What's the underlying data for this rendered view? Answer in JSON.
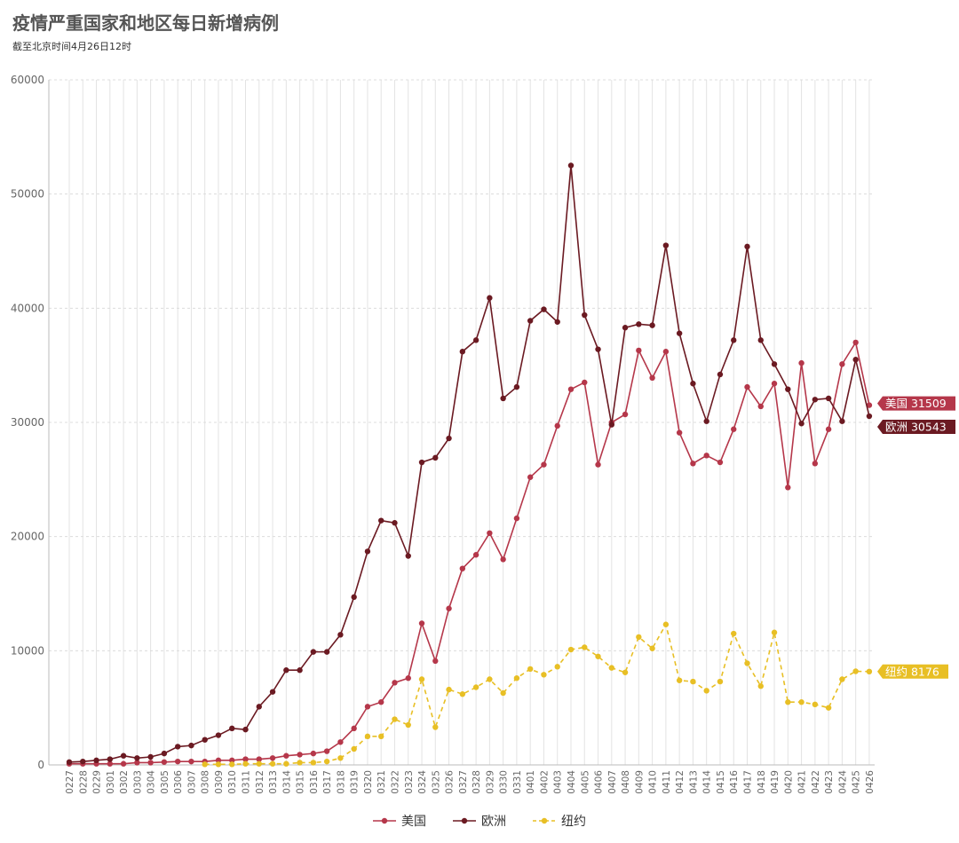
{
  "header": {
    "title": "疫情严重国家和地区每日新增病例",
    "subtitle": "截至北京时间4月26日12时"
  },
  "chart_data": {
    "type": "line",
    "title": "疫情严重国家和地区每日新增病例",
    "subtitle": "截至北京时间4月26日12时",
    "xlabel": "",
    "ylabel": "",
    "ylim": [
      0,
      60000
    ],
    "yticks": [
      0,
      10000,
      20000,
      30000,
      40000,
      50000,
      60000
    ],
    "grid": true,
    "legend_position": "bottom",
    "categories": [
      "0227",
      "0228",
      "0229",
      "0301",
      "0302",
      "0303",
      "0304",
      "0305",
      "0306",
      "0307",
      "0308",
      "0309",
      "0310",
      "0311",
      "0312",
      "0313",
      "0314",
      "0315",
      "0316",
      "0317",
      "0318",
      "0319",
      "0320",
      "0321",
      "0322",
      "0323",
      "0324",
      "0325",
      "0326",
      "0327",
      "0328",
      "0329",
      "0330",
      "0331",
      "0401",
      "0402",
      "0403",
      "0404",
      "0405",
      "0406",
      "0407",
      "0408",
      "0409",
      "0410",
      "0411",
      "0412",
      "0413",
      "0414",
      "0415",
      "0416",
      "0417",
      "0418",
      "0419",
      "0420",
      "0421",
      "0422",
      "0423",
      "0424",
      "0425",
      "0426"
    ],
    "series": [
      {
        "name": "美国",
        "color": "#b5374a",
        "dashed": false,
        "end_label": "美国 31509",
        "values": [
          100,
          100,
          100,
          100,
          100,
          200,
          200,
          250,
          300,
          300,
          300,
          400,
          400,
          500,
          500,
          600,
          800,
          900,
          1000,
          1200,
          2000,
          3200,
          5100,
          5500,
          7200,
          7600,
          12400,
          9100,
          13700,
          17200,
          18400,
          20300,
          18000,
          21600,
          25200,
          26300,
          29700,
          32900,
          33500,
          26300,
          30000,
          30700,
          36300,
          33900,
          36200,
          29100,
          26400,
          27100,
          26500,
          29400,
          33100,
          31400,
          33400,
          24300,
          35200,
          26400,
          29400,
          35100,
          37000,
          31509
        ]
      },
      {
        "name": "欧洲",
        "color": "#6b1a22",
        "dashed": false,
        "end_label": "欧洲 30543",
        "values": [
          250,
          300,
          400,
          500,
          800,
          600,
          700,
          1000,
          1600,
          1700,
          2200,
          2600,
          3200,
          3100,
          5100,
          6400,
          8300,
          8300,
          9900,
          9900,
          11400,
          14700,
          18700,
          21400,
          21200,
          18300,
          26500,
          26900,
          28600,
          36200,
          37200,
          40900,
          32100,
          33100,
          38900,
          39900,
          38800,
          52500,
          39400,
          36400,
          29800,
          38300,
          38600,
          38500,
          45500,
          37800,
          33400,
          30100,
          34200,
          37200,
          45400,
          37200,
          35100,
          32900,
          29900,
          32000,
          32100,
          30100,
          35500,
          30543
        ]
      },
      {
        "name": "纽约",
        "color": "#e8bf25",
        "dashed": true,
        "end_label": "纽约 8176",
        "start_index": 10,
        "values": [
          null,
          null,
          null,
          null,
          null,
          null,
          null,
          null,
          null,
          null,
          50,
          50,
          50,
          100,
          100,
          100,
          100,
          200,
          200,
          300,
          600,
          1400,
          2500,
          2500,
          4000,
          3500,
          7500,
          3300,
          6600,
          6200,
          6800,
          7500,
          6300,
          7600,
          8400,
          7900,
          8600,
          10100,
          10300,
          9500,
          8500,
          8100,
          11200,
          10200,
          12300,
          7400,
          7300,
          6500,
          7300,
          11500,
          8900,
          6900,
          11600,
          5500,
          5500,
          5300,
          5000,
          7500,
          8200,
          8176
        ]
      }
    ]
  }
}
